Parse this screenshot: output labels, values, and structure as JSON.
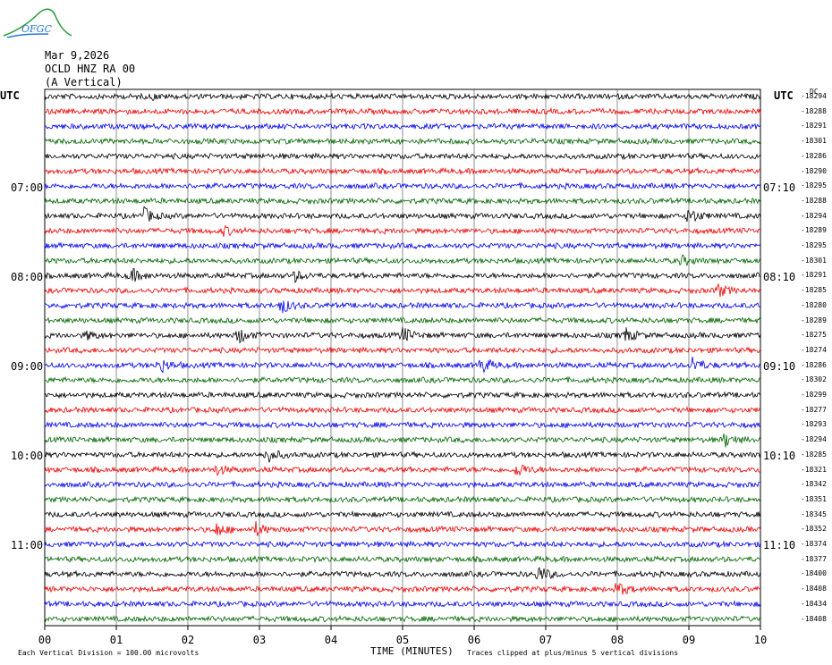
{
  "logo": {
    "text": "OFGC",
    "icon": "mountain-logo-icon"
  },
  "header": {
    "date": "Mar 9,2026",
    "station": "OCLD HNZ RA 00",
    "component": "(A Vertical)"
  },
  "utc_left": "UTC",
  "utc_right": "UTC",
  "dc_label": "DC",
  "time_labels_left": [
    "07:00",
    "08:00",
    "09:00",
    "10:00",
    "11:00"
  ],
  "time_labels_right": [
    "07:10",
    "08:10",
    "09:10",
    "10:10",
    "11:10"
  ],
  "colors": {
    "trace_cycle": [
      "#000000",
      "#ee0000",
      "#0000ee",
      "#006600"
    ],
    "grid": "#000000"
  },
  "chart_data": {
    "type": "line",
    "title": "OCLD HNZ RA 00",
    "xlabel": "TIME (MINUTES)",
    "xlim": [
      0,
      10
    ],
    "x_ticks": [
      "00",
      "01",
      "02",
      "03",
      "04",
      "05",
      "06",
      "07",
      "08",
      "09",
      "10"
    ],
    "dc_offsets": [
      "-18294",
      "-18288",
      "-18291",
      "-18301",
      "-18286",
      "-18290",
      "-18295",
      "-18288",
      "-18294",
      "-18289",
      "-18295",
      "-18301",
      "-18291",
      "-18285",
      "-18280",
      "-18289",
      "-18275",
      "-18274",
      "-18286",
      "-18302",
      "-18299",
      "-18277",
      "-18293",
      "-18294",
      "-18285",
      "-18321",
      "-18342",
      "-18351",
      "-18345",
      "-18352",
      "-18374",
      "-18377",
      "-18400",
      "-18408",
      "-18434",
      "-18408"
    ],
    "events": [
      {
        "trace": 0,
        "minute": 1.5,
        "amp": 0.3
      },
      {
        "trace": 8,
        "minute": 1.38,
        "amp": 1.2
      },
      {
        "trace": 8,
        "minute": 9.0,
        "amp": 1.3
      },
      {
        "trace": 9,
        "minute": 2.5,
        "amp": 0.6
      },
      {
        "trace": 11,
        "minute": 8.9,
        "amp": 0.7
      },
      {
        "trace": 12,
        "minute": 1.2,
        "amp": 1.1
      },
      {
        "trace": 12,
        "minute": 3.5,
        "amp": 0.7
      },
      {
        "trace": 13,
        "minute": 9.4,
        "amp": 1.0
      },
      {
        "trace": 14,
        "minute": 3.3,
        "amp": 1.2
      },
      {
        "trace": 16,
        "minute": 0.6,
        "amp": 0.6
      },
      {
        "trace": 16,
        "minute": 2.7,
        "amp": 1.2
      },
      {
        "trace": 16,
        "minute": 5.0,
        "amp": 1.2
      },
      {
        "trace": 16,
        "minute": 8.1,
        "amp": 1.1
      },
      {
        "trace": 18,
        "minute": 1.6,
        "amp": 1.2
      },
      {
        "trace": 18,
        "minute": 6.1,
        "amp": 1.2
      },
      {
        "trace": 18,
        "minute": 9.05,
        "amp": 1.2
      },
      {
        "trace": 23,
        "minute": 9.5,
        "amp": 1.1
      },
      {
        "trace": 24,
        "minute": 3.1,
        "amp": 1.2
      },
      {
        "trace": 25,
        "minute": 2.4,
        "amp": 0.7
      },
      {
        "trace": 25,
        "minute": 6.6,
        "amp": 1.1
      },
      {
        "trace": 29,
        "minute": 2.4,
        "amp": 1.0
      },
      {
        "trace": 29,
        "minute": 2.95,
        "amp": 1.0
      },
      {
        "trace": 32,
        "minute": 6.9,
        "amp": 1.2
      },
      {
        "trace": 33,
        "minute": 8.0,
        "amp": 1.1
      }
    ]
  },
  "footer": {
    "left": "Each Vertical Division =  100.00 microvolts",
    "right": "Traces clipped at plus/minus 5 vertical divisions"
  }
}
